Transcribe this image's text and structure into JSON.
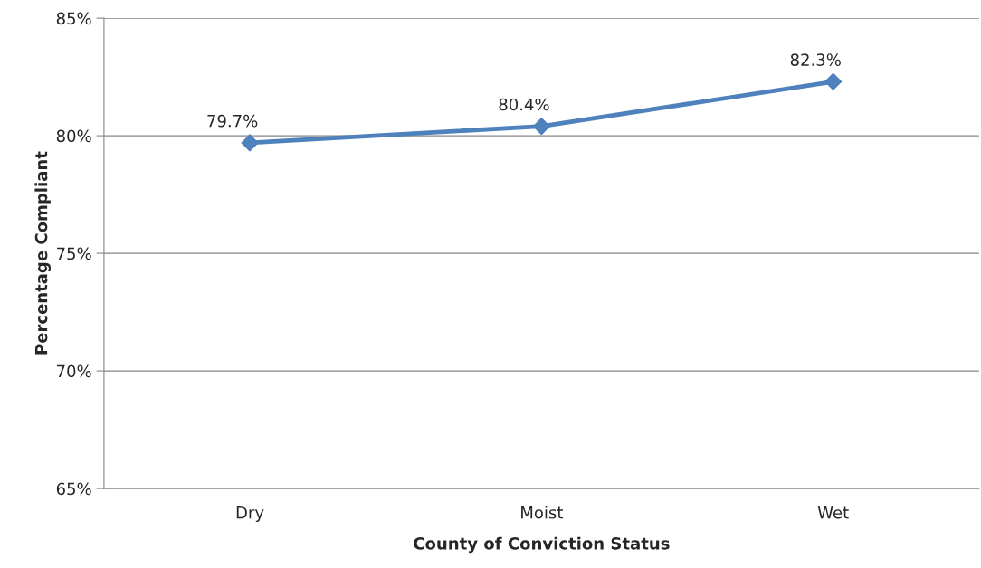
{
  "chart_data": {
    "type": "line",
    "xlabel": "County of Conviction Status",
    "ylabel": "Percentage Compliant",
    "categories": [
      "Dry",
      "Moist",
      "Wet"
    ],
    "series": [
      {
        "color": "#4f81bd",
        "values": [
          79.7,
          80.4,
          82.3
        ],
        "value_labels": [
          "79.7%",
          "80.4%",
          "82.3%"
        ]
      }
    ],
    "ylim": [
      65,
      85
    ],
    "yticks": [
      {
        "value": 65,
        "label": "65%"
      },
      {
        "value": 70,
        "label": "70%"
      },
      {
        "value": 75,
        "label": "75%"
      },
      {
        "value": 80,
        "label": "80%"
      },
      {
        "value": 85,
        "label": "85%"
      }
    ],
    "grid": "y",
    "marker": "diamond",
    "line_style": "solid",
    "legend": false
  }
}
